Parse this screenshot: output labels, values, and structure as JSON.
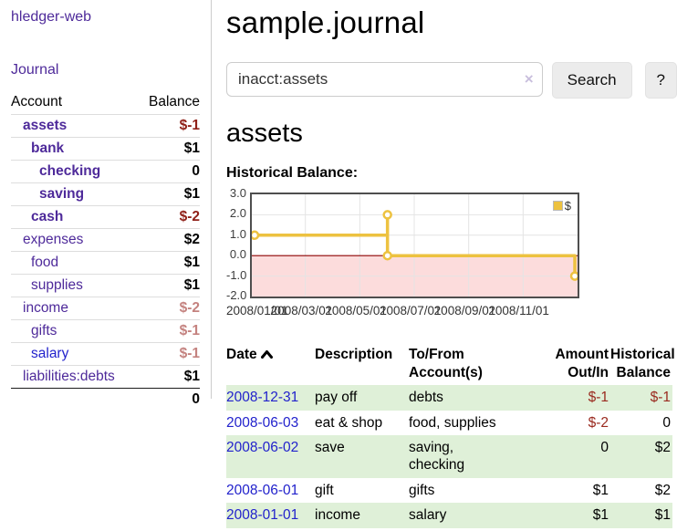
{
  "sidebar": {
    "app_title": "hledger-web",
    "journal_link": "Journal",
    "accounts": {
      "header_account": "Account",
      "header_balance": "Balance",
      "rows": [
        {
          "name": "assets",
          "depth": 1,
          "bold": true,
          "name_color": "purple",
          "balance": "$-1",
          "balance_color": "neg-dark"
        },
        {
          "name": "bank",
          "depth": 2,
          "bold": true,
          "name_color": "purple",
          "balance": "$1",
          "balance_color": ""
        },
        {
          "name": "checking",
          "depth": 3,
          "bold": true,
          "name_color": "purple",
          "balance": "0",
          "balance_color": ""
        },
        {
          "name": "saving",
          "depth": 3,
          "bold": true,
          "name_color": "purple",
          "balance": "$1",
          "balance_color": ""
        },
        {
          "name": "cash",
          "depth": 2,
          "bold": true,
          "name_color": "purple",
          "balance": "$-2",
          "balance_color": "neg-dark"
        },
        {
          "name": "expenses",
          "depth": 1,
          "bold": false,
          "name_color": "purple",
          "balance": "$2",
          "balance_color": ""
        },
        {
          "name": "food",
          "depth": 2,
          "bold": false,
          "name_color": "purple",
          "balance": "$1",
          "balance_color": ""
        },
        {
          "name": "supplies",
          "depth": 2,
          "bold": false,
          "name_color": "purple",
          "balance": "$1",
          "balance_color": ""
        },
        {
          "name": "income",
          "depth": 1,
          "bold": false,
          "name_color": "purple",
          "balance": "$-2",
          "balance_color": "neg-muted"
        },
        {
          "name": "gifts",
          "depth": 2,
          "bold": false,
          "name_color": "purple",
          "balance": "$-1",
          "balance_color": "neg-muted"
        },
        {
          "name": "salary",
          "depth": 2,
          "bold": false,
          "name_color": "blue",
          "balance": "$-1",
          "balance_color": "neg-muted"
        },
        {
          "name": "liabilities:debts",
          "depth": 1,
          "bold": false,
          "name_color": "purple",
          "balance": "$1",
          "balance_color": ""
        }
      ],
      "total": "0"
    }
  },
  "header": {
    "title": "sample.journal"
  },
  "search": {
    "value": "inacct:assets",
    "clear_icon": "×",
    "button_label": "Search",
    "help_label": "?"
  },
  "section": {
    "account_heading": "assets",
    "chart_label": "Historical Balance:"
  },
  "chart_data": {
    "type": "line",
    "title": "Historical Balance",
    "legend": [
      {
        "label": "$",
        "color": "#edc240",
        "position": "top-right"
      }
    ],
    "x_unit": "day-of-year-2008",
    "x_range": [
      0,
      365
    ],
    "ylim": [
      -2.0,
      3.0
    ],
    "y_ticks": [
      "3.0",
      "2.0",
      "1.0",
      "0.0",
      "-1.0",
      "-2.0"
    ],
    "y_tick_values": [
      3,
      2,
      1,
      0,
      -1,
      -2
    ],
    "x_ticks": [
      {
        "day": 0,
        "label": "2008/01/01"
      },
      {
        "day": 60,
        "label": "2008/03/01"
      },
      {
        "day": 121,
        "label": "2008/05/01"
      },
      {
        "day": 182,
        "label": "2008/07/01"
      },
      {
        "day": 243,
        "label": "2008/09/01"
      },
      {
        "day": 304,
        "label": "2008/11/01"
      }
    ],
    "points": [
      {
        "date": "2008-01-01",
        "day": 0,
        "value": 1
      },
      {
        "date": "2008-06-02",
        "day": 152,
        "value": 2
      },
      {
        "date": "2008-06-03",
        "day": 152,
        "value": 0
      },
      {
        "date": "2008-12-31",
        "day": 365,
        "value": -1
      }
    ],
    "polyline": [
      [
        0,
        1
      ],
      [
        152,
        1
      ],
      [
        152,
        2
      ],
      [
        152,
        0
      ],
      [
        365,
        0
      ],
      [
        365,
        -1
      ]
    ],
    "grid": true,
    "zero_line_color": "#8b0000",
    "negative_region_fill": "#fcdcdc",
    "series_color": "#edc240"
  },
  "register": {
    "headers": {
      "date": "Date",
      "description": "Description",
      "accounts": "To/From\nAccount(s)",
      "amount": "Amount\nOut/In",
      "balance": "Historical\nBalance"
    },
    "rows": [
      {
        "date": "2008-12-31",
        "description": "pay off",
        "accounts": "debts",
        "amount": "$-1",
        "balance": "$-1",
        "highlight": true
      },
      {
        "date": "2008-06-03",
        "description": "eat & shop",
        "accounts": "food, supplies",
        "amount": "$-2",
        "balance": "0",
        "highlight": false
      },
      {
        "date": "2008-06-02",
        "description": "save",
        "accounts": "saving,\nchecking",
        "amount": "0",
        "balance": "$2",
        "highlight": true
      },
      {
        "date": "2008-06-01",
        "description": "gift",
        "accounts": "gifts",
        "amount": "$1",
        "balance": "$2",
        "highlight": false
      },
      {
        "date": "2008-01-01",
        "description": "income",
        "accounts": "salary",
        "amount": "$1",
        "balance": "$1",
        "highlight": true
      }
    ]
  },
  "colors": {
    "link_purple": "#4e2a9a",
    "link_blue": "#2222cc",
    "negative_dark_red": "#8f2018",
    "negative_muted_red": "#c4827f",
    "row_highlight_green": "#dff0d8",
    "series_gold": "#edc240",
    "chart_negative_pink": "#fcdcdc",
    "zero_line_dark_red": "#8b0000"
  }
}
